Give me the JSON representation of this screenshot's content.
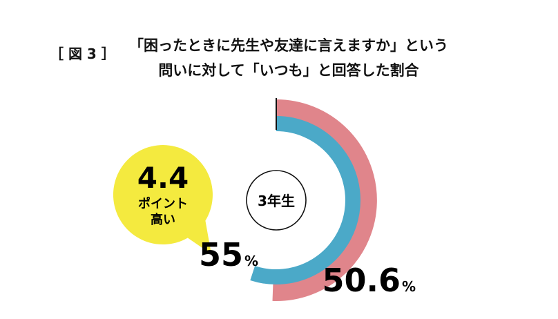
{
  "figure_label": "［ 図 3 ］",
  "title_lines": [
    "「困ったときに先生や友達に言えますか」という",
    "問いに対して「いつも」と回答した割合"
  ],
  "center_label": "3年生",
  "callout": {
    "value": "4.4",
    "line1": "ポイント",
    "line2": "高い"
  },
  "chart_data": {
    "type": "radial-bar",
    "series": [
      {
        "value": 50.6,
        "label": "50.6",
        "unit": "%",
        "color": "#e0858b"
      },
      {
        "value": 55,
        "label": "55",
        "unit": "%",
        "color": "#4ba9c8"
      }
    ],
    "difference": 4.4,
    "colors": {
      "callout": "#f4ea3f",
      "center_stroke": "#111111"
    }
  }
}
